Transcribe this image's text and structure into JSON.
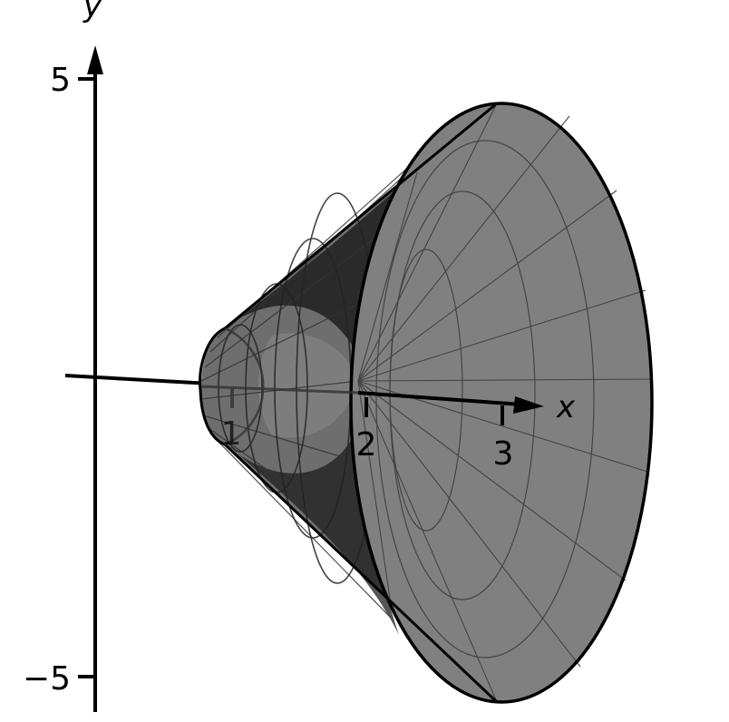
{
  "axes": {
    "x_label": "x",
    "y_label": "y",
    "x_ticks": [
      "1",
      "2",
      "3"
    ],
    "y_ticks": [
      "5",
      "−5"
    ]
  },
  "colors": {
    "surface_front": "#808080",
    "surface_side": "#6e6e6e",
    "surface_inner_dark": "#2a2a2a",
    "mesh": "#444444",
    "outline": "#000000"
  }
}
